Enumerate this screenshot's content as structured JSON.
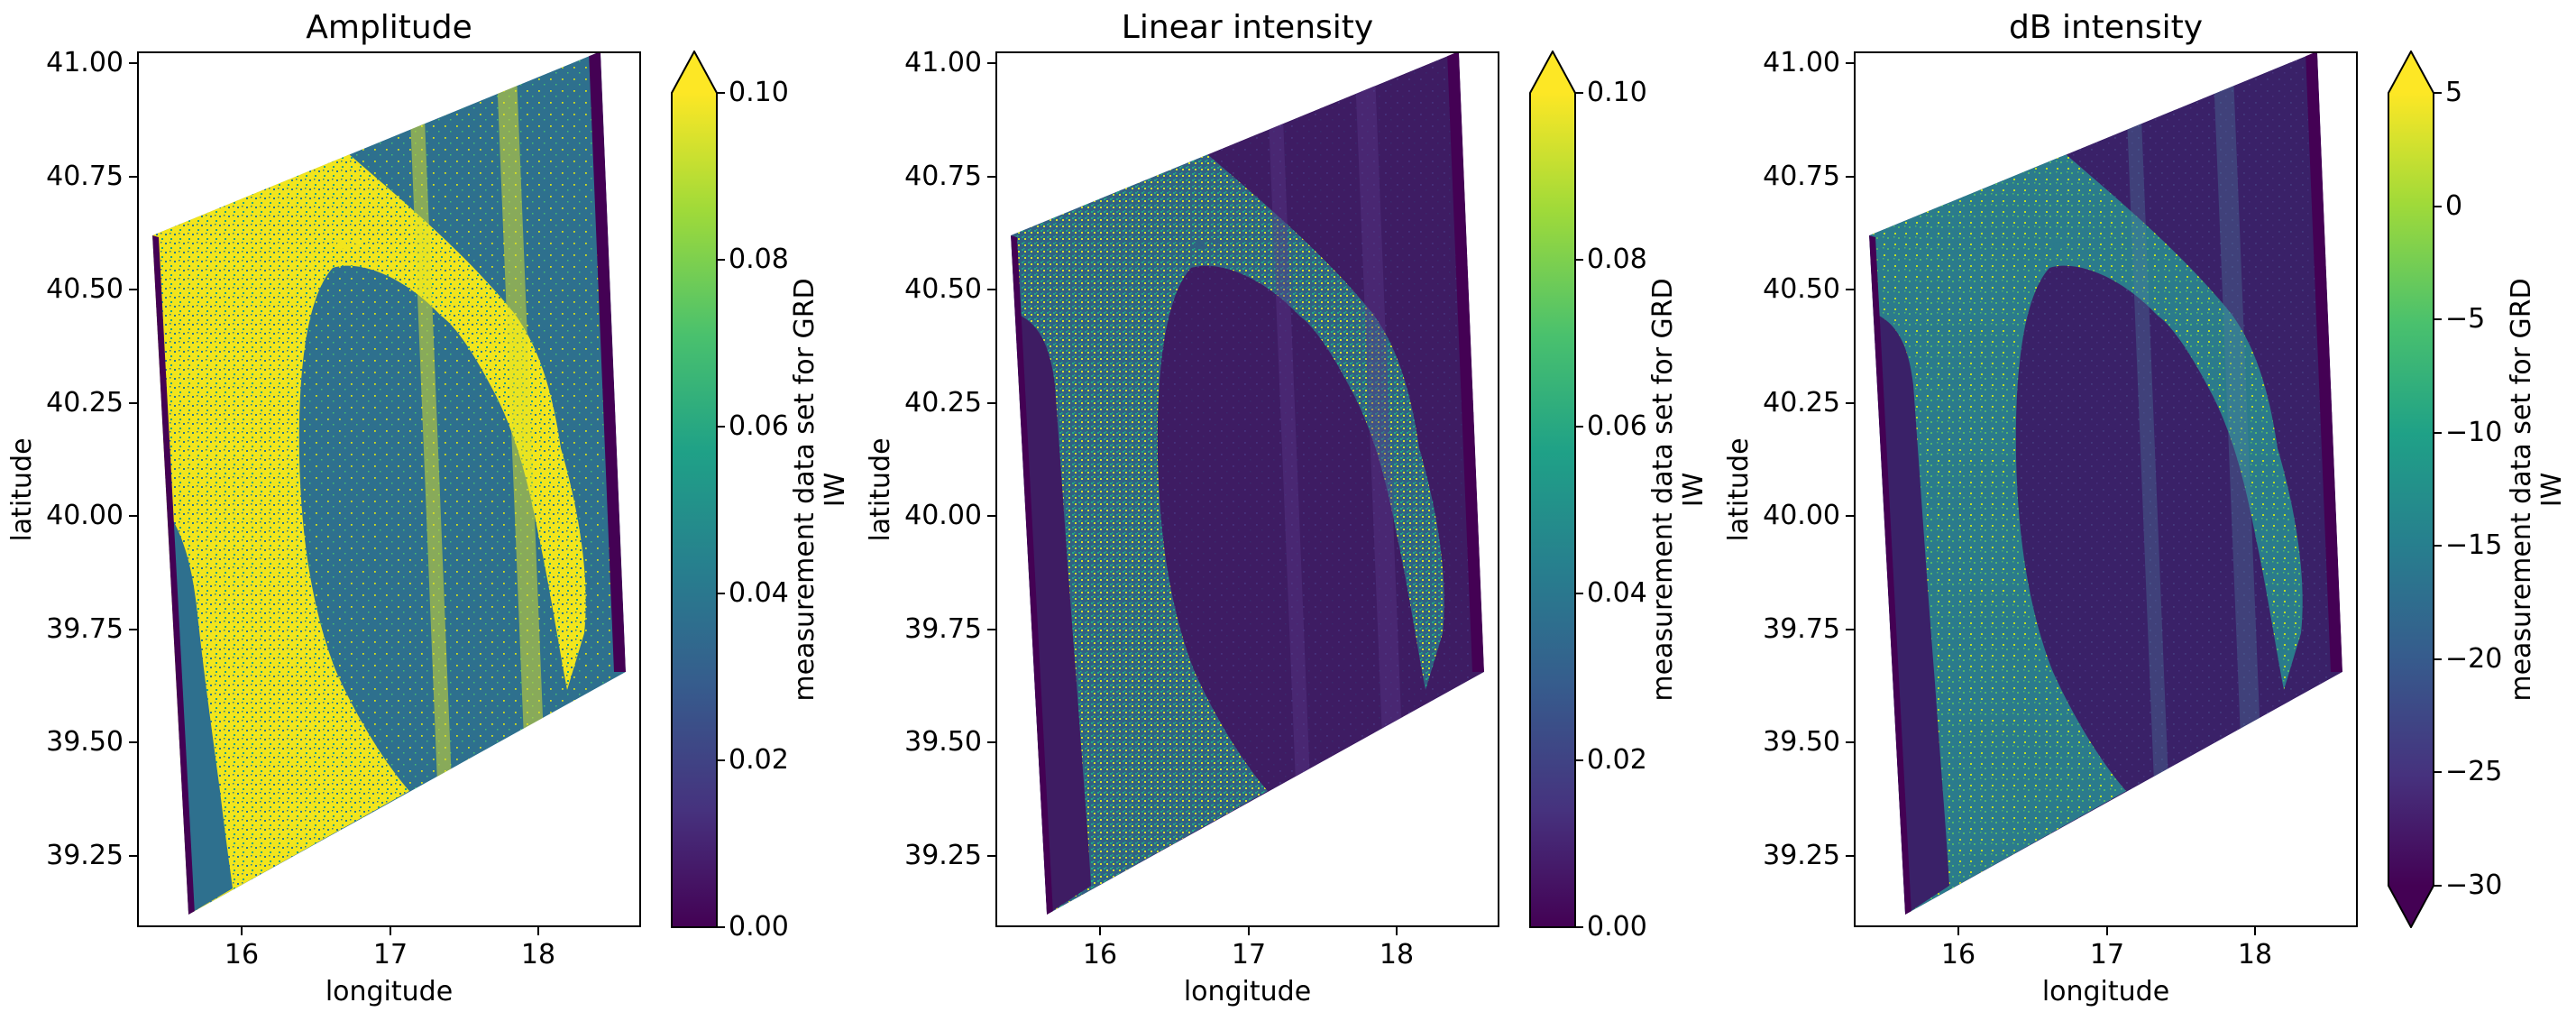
{
  "figure": {
    "background": "#ffffff",
    "description": "Three-panel matplotlib figure of a Sentinel-1 SAR GRD scene over the Gulf of Taranto, Italy, shown as Amplitude, Linear intensity and dB intensity with viridis colorbars"
  },
  "subplots": [
    {
      "title": "Amplitude",
      "xlabel": "longitude",
      "ylabel": "latitude",
      "x_ticks": [
        "16",
        "17",
        "18"
      ],
      "y_ticks": [
        "41.00",
        "40.75",
        "40.50",
        "40.25",
        "40.00",
        "39.75",
        "39.50",
        "39.25"
      ],
      "colorbar": {
        "ticks": [
          "0.10",
          "0.08",
          "0.06",
          "0.04",
          "0.02",
          "0.00"
        ],
        "label_line1": "measurement data set for GRD",
        "label_line2": "IW",
        "extend": "max"
      },
      "palette": {
        "land": "#f2e51d",
        "sea": "#2e708e",
        "edge": "#440154",
        "seam": "#e2e326",
        "seam_opacity": 0.5,
        "speckle_land": [
          "#2a788e",
          "#1fa187"
        ],
        "speckle_sea": [
          "#d8e219",
          "#4ac16d"
        ]
      }
    },
    {
      "title": "Linear intensity",
      "xlabel": "longitude",
      "ylabel": "latitude",
      "x_ticks": [
        "16",
        "17",
        "18"
      ],
      "y_ticks": [
        "41.00",
        "40.75",
        "40.50",
        "40.25",
        "40.00",
        "39.75",
        "39.50",
        "39.25"
      ],
      "colorbar": {
        "ticks": [
          "0.10",
          "0.08",
          "0.06",
          "0.04",
          "0.02",
          "0.00"
        ],
        "label_line1": "measurement data set for GRD",
        "label_line2": "IW",
        "extend": "max"
      },
      "palette": {
        "land": "#316183",
        "sea": "#3e1c63",
        "edge": "#440154",
        "seam": "#5b3a8a",
        "seam_opacity": 0.4,
        "speckle_land": [
          "#22a884",
          "#d4e22b"
        ],
        "speckle_sea": [
          "#46327e",
          "#3b2a6e"
        ]
      }
    },
    {
      "title": "dB intensity",
      "xlabel": "longitude",
      "ylabel": "latitude",
      "x_ticks": [
        "16",
        "17",
        "18"
      ],
      "y_ticks": [
        "41.00",
        "40.75",
        "40.50",
        "40.25",
        "40.00",
        "39.75",
        "39.50",
        "39.25"
      ],
      "colorbar": {
        "ticks": [
          "5",
          "0",
          "−5",
          "−10",
          "−15",
          "−20",
          "−25",
          "−30"
        ],
        "label_line1": "measurement data set for GRD",
        "label_line2": "IW",
        "extend": "both"
      },
      "palette": {
        "land": "#2b7b8c",
        "sea": "#3a2168",
        "edge": "#440154",
        "seam": "#4e7f9e",
        "seam_opacity": 0.35,
        "speckle_land": [
          "#52b569",
          "#bddf26"
        ],
        "speckle_sea": [
          "#433a7d",
          "#46327e"
        ]
      }
    }
  ],
  "chart_data": [
    {
      "type": "heatmap",
      "title": "Amplitude",
      "xlabel": "longitude",
      "ylabel": "latitude",
      "xlim": [
        15.3,
        18.69
      ],
      "ylim": [
        39.09,
        41.03
      ],
      "xticks": [
        16,
        17,
        18
      ],
      "yticks": [
        41.0,
        40.75,
        40.5,
        40.25,
        40.0,
        39.75,
        39.5,
        39.25
      ],
      "colormap": "viridis",
      "colorbar": {
        "label": "measurement data set for GRD IW",
        "vmin": 0.0,
        "vmax": 0.1,
        "ticks": [
          0.1,
          0.08,
          0.06,
          0.04,
          0.02,
          0.0
        ],
        "extend": "max"
      },
      "swath_corners_lonlat": [
        [
          15.4,
          40.62
        ],
        [
          18.42,
          41.03
        ],
        [
          18.59,
          39.66
        ],
        [
          15.64,
          39.14
        ]
      ],
      "content": "Tilted SAR swath parallelogram; land saturated yellow (>= 0.1), sea (Gulf of Taranto, Adriatic, Tyrrhenian strip) teal ~0.04, dark purple no-data stripes along swath edges"
    },
    {
      "type": "heatmap",
      "title": "Linear intensity",
      "xlabel": "longitude",
      "ylabel": "latitude",
      "xlim": [
        15.3,
        18.69
      ],
      "ylim": [
        39.09,
        41.03
      ],
      "xticks": [
        16,
        17,
        18
      ],
      "yticks": [
        41.0,
        40.75,
        40.5,
        40.25,
        40.0,
        39.75,
        39.5,
        39.25
      ],
      "colormap": "viridis",
      "colorbar": {
        "label": "measurement data set for GRD IW",
        "vmin": 0.0,
        "vmax": 0.1,
        "ticks": [
          0.1,
          0.08,
          0.06,
          0.04,
          0.02,
          0.0
        ],
        "extend": "max"
      },
      "swath_corners_lonlat": [
        [
          15.4,
          40.62
        ],
        [
          18.42,
          41.03
        ],
        [
          18.59,
          39.66
        ],
        [
          15.64,
          39.14
        ]
      ],
      "content": "Same swath; intensity = amplitude squared so scene is dark: land mottled blue-teal with bright green/yellow speckle ~0.01-0.03, water deep violet ~0.001"
    },
    {
      "type": "heatmap",
      "title": "dB intensity",
      "xlabel": "longitude",
      "ylabel": "latitude",
      "xlim": [
        15.3,
        18.69
      ],
      "ylim": [
        39.09,
        41.03
      ],
      "xticks": [
        16,
        17,
        18
      ],
      "yticks": [
        41.0,
        40.75,
        40.5,
        40.25,
        40.0,
        39.75,
        39.5,
        39.25
      ],
      "colormap": "viridis",
      "colorbar": {
        "label": "measurement data set for GRD IW",
        "vmin": -30,
        "vmax": 5,
        "ticks": [
          5,
          0,
          -5,
          -10,
          -15,
          -20,
          -25,
          -30
        ],
        "extend": "both"
      },
      "swath_corners_lonlat": [
        [
          15.4,
          40.62
        ],
        [
          18.42,
          41.03
        ],
        [
          18.59,
          39.66
        ],
        [
          15.64,
          39.14
        ]
      ],
      "content": "Same swath in decibels: land teal ~-10 dB with light speckle, water dark violet ~-25 dB, no-data edge stripes near -30 dB"
    }
  ]
}
